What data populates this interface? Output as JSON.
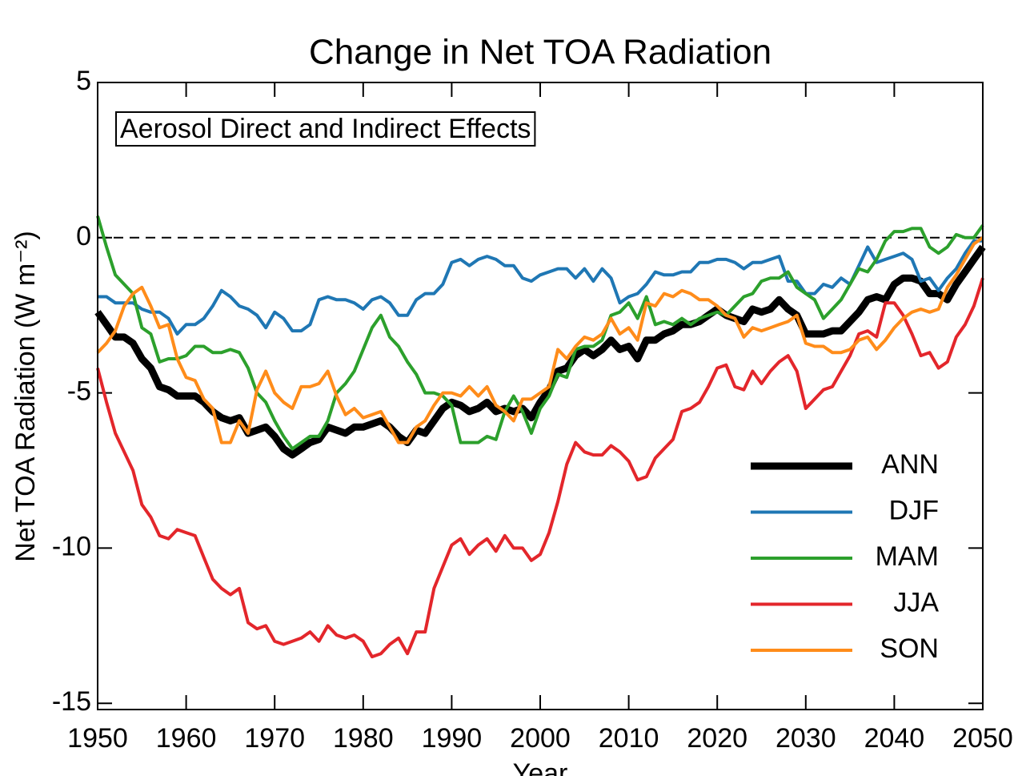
{
  "chart_data": {
    "type": "line",
    "title": "Change in Net TOA Radiation",
    "annotation": "Aerosol Direct and Indirect Effects",
    "xlabel": "Year",
    "ylabel": "Net TOA Radiation (W m⁻²)",
    "xlim": [
      1950,
      2050
    ],
    "xticks": [
      1950,
      1960,
      1970,
      1980,
      1990,
      2000,
      2010,
      2020,
      2030,
      2040,
      2050
    ],
    "ylim": [
      -15.2,
      5
    ],
    "yticks": [
      5,
      0,
      -5,
      -10,
      -15
    ],
    "legend": "lower right",
    "x": [
      1950,
      1951,
      1952,
      1953,
      1954,
      1955,
      1956,
      1957,
      1958,
      1959,
      1960,
      1961,
      1962,
      1963,
      1964,
      1965,
      1966,
      1967,
      1968,
      1969,
      1970,
      1971,
      1972,
      1973,
      1974,
      1975,
      1976,
      1977,
      1978,
      1979,
      1980,
      1981,
      1982,
      1983,
      1984,
      1985,
      1986,
      1987,
      1988,
      1989,
      1990,
      1991,
      1992,
      1993,
      1994,
      1995,
      1996,
      1997,
      1998,
      1999,
      2000,
      2001,
      2002,
      2003,
      2004,
      2005,
      2006,
      2007,
      2008,
      2009,
      2010,
      2011,
      2012,
      2013,
      2014,
      2015,
      2016,
      2017,
      2018,
      2019,
      2020,
      2021,
      2022,
      2023,
      2024,
      2025,
      2026,
      2027,
      2028,
      2029,
      2030,
      2031,
      2032,
      2033,
      2034,
      2035,
      2036,
      2037,
      2038,
      2039,
      2040,
      2041,
      2042,
      2043,
      2044,
      2045,
      2046,
      2047,
      2048,
      2049,
      2050
    ],
    "series": [
      {
        "name": "ANN",
        "color": "#000000",
        "linewidth": 9,
        "values": [
          -2.4,
          -2.8,
          -3.2,
          -3.2,
          -3.4,
          -3.9,
          -4.2,
          -4.8,
          -4.9,
          -5.1,
          -5.1,
          -5.1,
          -5.3,
          -5.6,
          -5.8,
          -5.9,
          -5.8,
          -6.3,
          -6.2,
          -6.1,
          -6.4,
          -6.8,
          -7.0,
          -6.8,
          -6.6,
          -6.5,
          -6.1,
          -6.2,
          -6.3,
          -6.1,
          -6.1,
          -6.0,
          -5.9,
          -6.1,
          -6.4,
          -6.6,
          -6.2,
          -6.3,
          -5.9,
          -5.5,
          -5.3,
          -5.4,
          -5.6,
          -5.5,
          -5.3,
          -5.6,
          -5.5,
          -5.6,
          -5.5,
          -5.8,
          -5.3,
          -4.9,
          -4.3,
          -4.2,
          -3.8,
          -3.6,
          -3.8,
          -3.6,
          -3.3,
          -3.6,
          -3.5,
          -3.9,
          -3.3,
          -3.3,
          -3.1,
          -3.0,
          -2.8,
          -2.8,
          -2.7,
          -2.5,
          -2.3,
          -2.5,
          -2.6,
          -2.7,
          -2.3,
          -2.4,
          -2.3,
          -2.0,
          -2.3,
          -2.5,
          -3.1,
          -3.1,
          -3.1,
          -3.0,
          -3.0,
          -2.7,
          -2.4,
          -2.0,
          -1.9,
          -2.0,
          -1.5,
          -1.3,
          -1.3,
          -1.4,
          -1.8,
          -1.8,
          -2.0,
          -1.5,
          -1.1,
          -0.7,
          -0.3
        ]
      },
      {
        "name": "DJF",
        "color": "#1f77b4",
        "linewidth": 4,
        "values": [
          -1.9,
          -1.9,
          -2.1,
          -2.1,
          -2.1,
          -2.3,
          -2.4,
          -2.4,
          -2.6,
          -3.1,
          -2.8,
          -2.8,
          -2.6,
          -2.2,
          -1.7,
          -1.9,
          -2.2,
          -2.3,
          -2.5,
          -2.9,
          -2.4,
          -2.6,
          -3.0,
          -3.0,
          -2.8,
          -2.0,
          -1.9,
          -2.0,
          -2.0,
          -2.1,
          -2.3,
          -2.0,
          -1.9,
          -2.1,
          -2.5,
          -2.5,
          -2.0,
          -1.8,
          -1.8,
          -1.5,
          -0.8,
          -0.7,
          -0.9,
          -0.7,
          -0.6,
          -0.7,
          -0.9,
          -0.9,
          -1.3,
          -1.4,
          -1.2,
          -1.1,
          -1.0,
          -1.0,
          -1.3,
          -1.0,
          -1.4,
          -1.0,
          -1.3,
          -2.1,
          -1.9,
          -1.8,
          -1.5,
          -1.1,
          -1.2,
          -1.2,
          -1.1,
          -1.1,
          -0.8,
          -0.8,
          -0.7,
          -0.7,
          -0.8,
          -1.0,
          -0.8,
          -0.8,
          -0.7,
          -0.6,
          -1.4,
          -1.4,
          -1.8,
          -1.8,
          -1.5,
          -1.6,
          -1.3,
          -1.5,
          -0.9,
          -0.3,
          -0.8,
          -0.7,
          -0.6,
          -0.5,
          -0.7,
          -1.4,
          -1.3,
          -1.7,
          -1.3,
          -1.0,
          -0.5,
          -0.1,
          -0.1
        ]
      },
      {
        "name": "MAM",
        "color": "#2ca02c",
        "linewidth": 4,
        "values": [
          0.7,
          -0.3,
          -1.2,
          -1.5,
          -1.8,
          -2.9,
          -3.1,
          -4.0,
          -3.9,
          -3.9,
          -3.8,
          -3.5,
          -3.5,
          -3.7,
          -3.7,
          -3.6,
          -3.7,
          -4.2,
          -5.0,
          -5.3,
          -5.9,
          -6.4,
          -6.8,
          -6.6,
          -6.4,
          -6.4,
          -5.9,
          -5.0,
          -4.7,
          -4.3,
          -3.6,
          -2.9,
          -2.5,
          -3.2,
          -3.5,
          -4.0,
          -4.4,
          -5.0,
          -5.0,
          -5.1,
          -5.4,
          -6.6,
          -6.6,
          -6.6,
          -6.4,
          -6.5,
          -5.6,
          -5.1,
          -5.6,
          -6.3,
          -5.5,
          -5.1,
          -4.4,
          -4.5,
          -3.6,
          -3.5,
          -3.5,
          -3.3,
          -2.5,
          -2.4,
          -2.1,
          -2.6,
          -1.9,
          -2.8,
          -2.7,
          -2.8,
          -2.6,
          -2.8,
          -2.6,
          -2.5,
          -2.4,
          -2.5,
          -2.2,
          -1.9,
          -1.8,
          -1.4,
          -1.3,
          -1.3,
          -1.1,
          -1.6,
          -1.8,
          -2.0,
          -2.6,
          -2.3,
          -2.0,
          -1.5,
          -1.0,
          -1.1,
          -0.7,
          -0.1,
          0.2,
          0.2,
          0.3,
          0.3,
          -0.3,
          -0.5,
          -0.3,
          0.1,
          0.0,
          0.0,
          0.4
        ]
      },
      {
        "name": "JJA",
        "color": "#e3262b",
        "linewidth": 4,
        "values": [
          -4.2,
          -5.3,
          -6.3,
          -6.9,
          -7.5,
          -8.6,
          -9.0,
          -9.6,
          -9.7,
          -9.4,
          -9.5,
          -9.6,
          -10.3,
          -11.0,
          -11.3,
          -11.5,
          -11.3,
          -12.4,
          -12.6,
          -12.5,
          -13.0,
          -13.1,
          -13.0,
          -12.9,
          -12.7,
          -13.0,
          -12.5,
          -12.8,
          -12.9,
          -12.8,
          -13.0,
          -13.5,
          -13.4,
          -13.1,
          -12.9,
          -13.4,
          -12.7,
          -12.7,
          -11.3,
          -10.6,
          -9.9,
          -9.7,
          -10.2,
          -9.9,
          -9.7,
          -10.1,
          -9.6,
          -10.0,
          -10.0,
          -10.4,
          -10.2,
          -9.5,
          -8.5,
          -7.3,
          -6.6,
          -6.9,
          -7.0,
          -7.0,
          -6.7,
          -6.9,
          -7.2,
          -7.8,
          -7.7,
          -7.1,
          -6.8,
          -6.5,
          -5.6,
          -5.5,
          -5.3,
          -4.8,
          -4.2,
          -4.1,
          -4.8,
          -4.9,
          -4.3,
          -4.7,
          -4.3,
          -4.0,
          -3.8,
          -4.3,
          -5.5,
          -5.2,
          -4.9,
          -4.8,
          -4.3,
          -3.8,
          -3.1,
          -3.0,
          -3.2,
          -2.1,
          -2.1,
          -2.5,
          -3.1,
          -3.8,
          -3.7,
          -4.2,
          -4.0,
          -3.2,
          -2.8,
          -2.2,
          -1.3
        ]
      },
      {
        "name": "SON",
        "color": "#ff8c1a",
        "linewidth": 4,
        "values": [
          -3.7,
          -3.4,
          -3.0,
          -2.2,
          -1.8,
          -1.6,
          -2.2,
          -2.9,
          -2.8,
          -3.9,
          -4.5,
          -4.6,
          -5.2,
          -5.5,
          -6.6,
          -6.6,
          -5.9,
          -6.3,
          -4.9,
          -4.3,
          -5.0,
          -5.3,
          -5.5,
          -4.8,
          -4.8,
          -4.7,
          -4.3,
          -5.1,
          -5.7,
          -5.5,
          -5.8,
          -5.7,
          -5.6,
          -6.1,
          -6.6,
          -6.6,
          -6.1,
          -5.9,
          -5.4,
          -5.0,
          -5.0,
          -5.1,
          -4.8,
          -5.1,
          -4.8,
          -5.4,
          -5.6,
          -5.9,
          -5.2,
          -5.2,
          -5.0,
          -4.8,
          -3.6,
          -3.9,
          -3.5,
          -3.2,
          -3.3,
          -3.1,
          -2.6,
          -3.1,
          -2.9,
          -3.3,
          -2.1,
          -2.2,
          -1.8,
          -1.9,
          -1.7,
          -1.8,
          -2.0,
          -2.0,
          -2.2,
          -2.5,
          -2.6,
          -3.2,
          -2.9,
          -3.0,
          -2.9,
          -2.8,
          -2.7,
          -2.5,
          -3.4,
          -3.5,
          -3.5,
          -3.7,
          -3.7,
          -3.6,
          -3.3,
          -3.2,
          -3.6,
          -3.3,
          -2.9,
          -2.6,
          -2.4,
          -2.3,
          -2.4,
          -2.3,
          -1.6,
          -1.2,
          -0.7,
          -0.2,
          0.0
        ]
      }
    ]
  }
}
